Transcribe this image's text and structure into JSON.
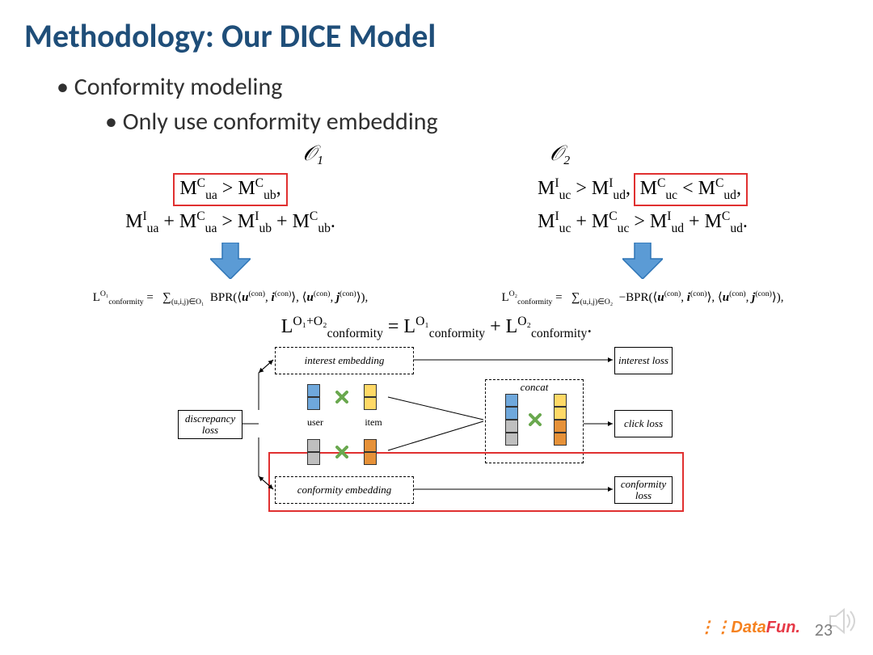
{
  "title": "Methodology: Our DICE Model",
  "bullets": {
    "b1": "Conformity modeling",
    "b2": "Only use conformity embedding"
  },
  "headers": {
    "o1": "𝒪₁",
    "o2": "𝒪₂"
  },
  "eq_o1": {
    "line1": "M<sup>C</sup><sub>ua</sub> > M<sup>C</sup><sub>ub</sub>,",
    "line2": "M<sup>I</sup><sub>ua</sub> + M<sup>C</sup><sub>ua</sub> > M<sup>I</sup><sub>ub</sub> + M<sup>C</sup><sub>ub</sub>."
  },
  "eq_o2": {
    "line1_left": "M<sup>I</sup><sub>uc</sub> > M<sup>I</sup><sub>ud</sub>,",
    "line1_right": "M<sup>C</sup><sub>uc</sub> < M<sup>C</sup><sub>ud</sub>,",
    "line2": "M<sup>I</sup><sub>uc</sub> + M<sup>C</sup><sub>uc</sub> > M<sup>I</sup><sub>ud</sub> + M<sup>C</sup><sub>ud</sub>."
  },
  "loss": {
    "o1": "L<sup>O₁</sup><sub>conformity</sub> = &nbsp; ∑<sub>(u,i,j)∈O₁</sub> &nbsp;BPR(⟨<b><i>u</i></b><sup>(con)</sup>, <b><i>i</i></b><sup>(con)</sup>⟩, ⟨<b><i>u</i></b><sup>(con)</sup>, <b><i>j</i></b><sup>(con)</sup>⟩),",
    "o2": "L<sup>O₂</sup><sub>conformity</sub> = &nbsp; ∑<sub>(u,i,j)∈O₂</sub> &nbsp;−BPR(⟨<b><i>u</i></b><sup>(con)</sup>, <b><i>i</i></b><sup>(con)</sup>⟩, ⟨<b><i>u</i></b><sup>(con)</sup>, <b><i>j</i></b><sup>(con)</sup>⟩),",
    "combined": "L<sup>O₁+O₂</sup><sub>conformity</sub> = L<sup>O₁</sup><sub>conformity</sub> + L<sup>O₂</sup><sub>conformity</sub>."
  },
  "diagram": {
    "interest_emb": "interest\nembedding",
    "conformity_emb": "conformity\nembedding",
    "discrepancy": "discrepancy\nloss",
    "interest_loss": "interest\nloss",
    "click_loss": "click\nloss",
    "conformity_loss": "conformity\nloss",
    "concat": "concat",
    "user": "user",
    "item": "item",
    "colors": {
      "blue": "#6fa8dc",
      "yellow": "#ffd966",
      "gray": "#bfbfbf",
      "orange": "#e69138",
      "red_border": "#e03030",
      "arrow_fill": "#5b9bd5",
      "x_green": "#6aa84f"
    }
  },
  "page_number": "23",
  "logo_text": {
    "part1": "Data",
    "part2": "Fun."
  }
}
